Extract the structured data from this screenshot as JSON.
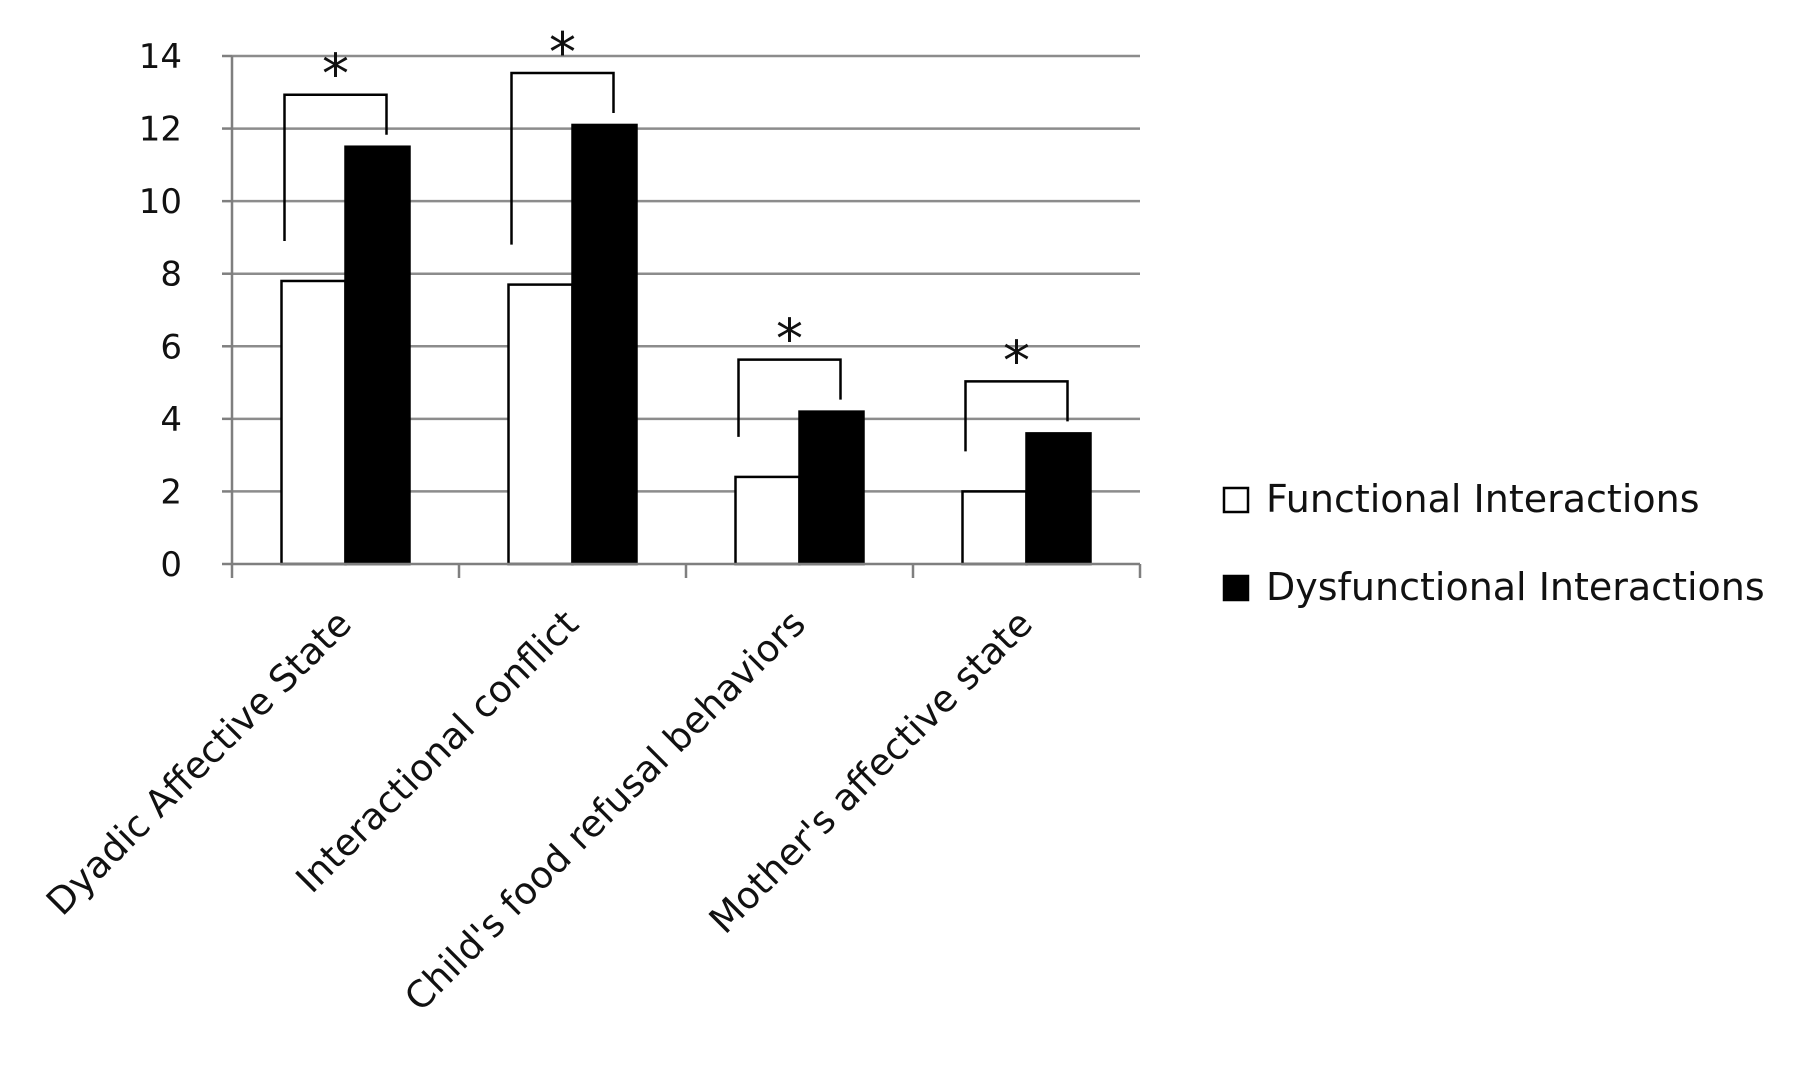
{
  "chart_data": {
    "type": "bar",
    "title": "",
    "xlabel": "",
    "ylabel": "",
    "ylim": [
      0,
      14
    ],
    "yticks": [
      0,
      2,
      4,
      6,
      8,
      10,
      12,
      14
    ],
    "grid": true,
    "legend_position": "right",
    "categories": [
      "Dyadic Affective State",
      "Interactional conflict",
      "Child's food refusal behaviors",
      "Mother's affective state"
    ],
    "series": [
      {
        "name": "Functional Interactions",
        "color": "#ffffff",
        "values": [
          7.8,
          7.7,
          2.4,
          2.0
        ]
      },
      {
        "name": "Dysfunctional Interactions",
        "color": "#000000",
        "values": [
          11.5,
          12.1,
          4.2,
          3.6
        ]
      }
    ],
    "significance": [
      {
        "category_index": 0,
        "marker": "*"
      },
      {
        "category_index": 1,
        "marker": "*"
      },
      {
        "category_index": 2,
        "marker": "*"
      },
      {
        "category_index": 3,
        "marker": "*"
      }
    ]
  }
}
